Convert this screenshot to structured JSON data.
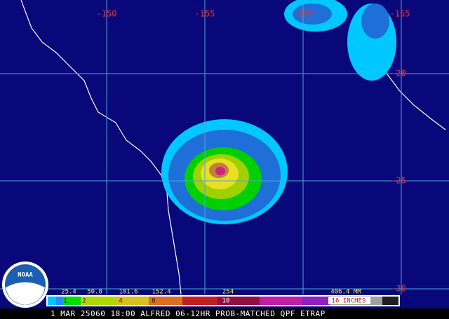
{
  "map": {
    "longitude_labels": [
      "-150",
      "-155",
      "-160",
      "-165"
    ],
    "latitude_labels": [
      "-20",
      "-25",
      "-30"
    ],
    "colorbar": {
      "mm_labels": [
        "25.4",
        "50.8",
        "101.6",
        "152.4",
        "254",
        "406.4 MM"
      ],
      "inch_labels": [
        "1",
        "2",
        "4",
        "6",
        "10",
        "16 INCHES"
      ]
    },
    "footer": "1 MAR 25060 18:00 ALFRED 06-12HR PROB-MATCHED QPF ETRAP",
    "logo": "NOAA"
  }
}
